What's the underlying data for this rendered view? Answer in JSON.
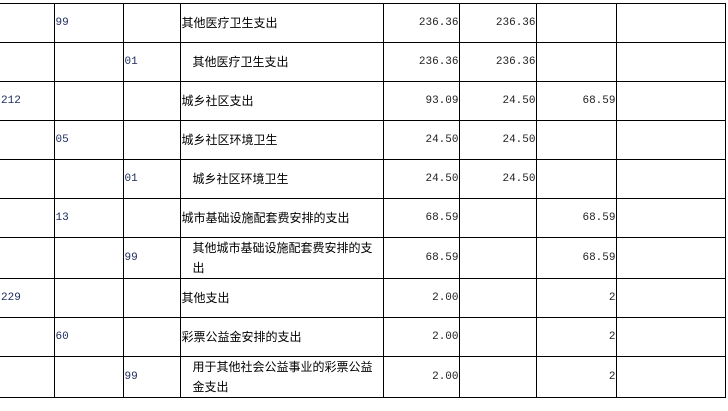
{
  "rows": [
    {
      "c1": "",
      "c2": "99",
      "c3": "",
      "name": "其他医疗卫生支出",
      "indent": false,
      "total": "236.36",
      "basic": "236.36",
      "project": "",
      "other": ""
    },
    {
      "c1": "",
      "c2": "",
      "c3": "01",
      "name": "其他医疗卫生支出",
      "indent": true,
      "total": "236.36",
      "basic": "236.36",
      "project": "",
      "other": ""
    },
    {
      "c1": "212",
      "c2": "",
      "c3": "",
      "name": "城乡社区支出",
      "indent": false,
      "total": "93.09",
      "basic": "24.50",
      "project": "68.59",
      "other": ""
    },
    {
      "c1": "",
      "c2": "05",
      "c3": "",
      "name": "城乡社区环境卫生",
      "indent": false,
      "total": "24.50",
      "basic": "24.50",
      "project": "",
      "other": ""
    },
    {
      "c1": "",
      "c2": "",
      "c3": "01",
      "name": "城乡社区环境卫生",
      "indent": true,
      "total": "24.50",
      "basic": "24.50",
      "project": "",
      "other": ""
    },
    {
      "c1": "",
      "c2": "13",
      "c3": "",
      "name": "城市基础设施配套费安排的支出",
      "indent": false,
      "total": "68.59",
      "basic": "",
      "project": "68.59",
      "other": ""
    },
    {
      "c1": "",
      "c2": "",
      "c3": "99",
      "name": "其他城市基础设施配套费安排的支出",
      "indent": true,
      "total": "68.59",
      "basic": "",
      "project": "68.59",
      "other": ""
    },
    {
      "c1": "229",
      "c2": "",
      "c3": "",
      "name": "其他支出",
      "indent": false,
      "total": "2.00",
      "basic": "",
      "project": "2",
      "other": ""
    },
    {
      "c1": "",
      "c2": "60",
      "c3": "",
      "name": "彩票公益金安排的支出",
      "indent": false,
      "total": "2.00",
      "basic": "",
      "project": "2",
      "other": ""
    },
    {
      "c1": "",
      "c2": "",
      "c3": "99",
      "name": "用于其他社会公益事业的彩票公益金支出",
      "indent": true,
      "total": "2.00",
      "basic": "",
      "project": "2",
      "other": ""
    }
  ]
}
